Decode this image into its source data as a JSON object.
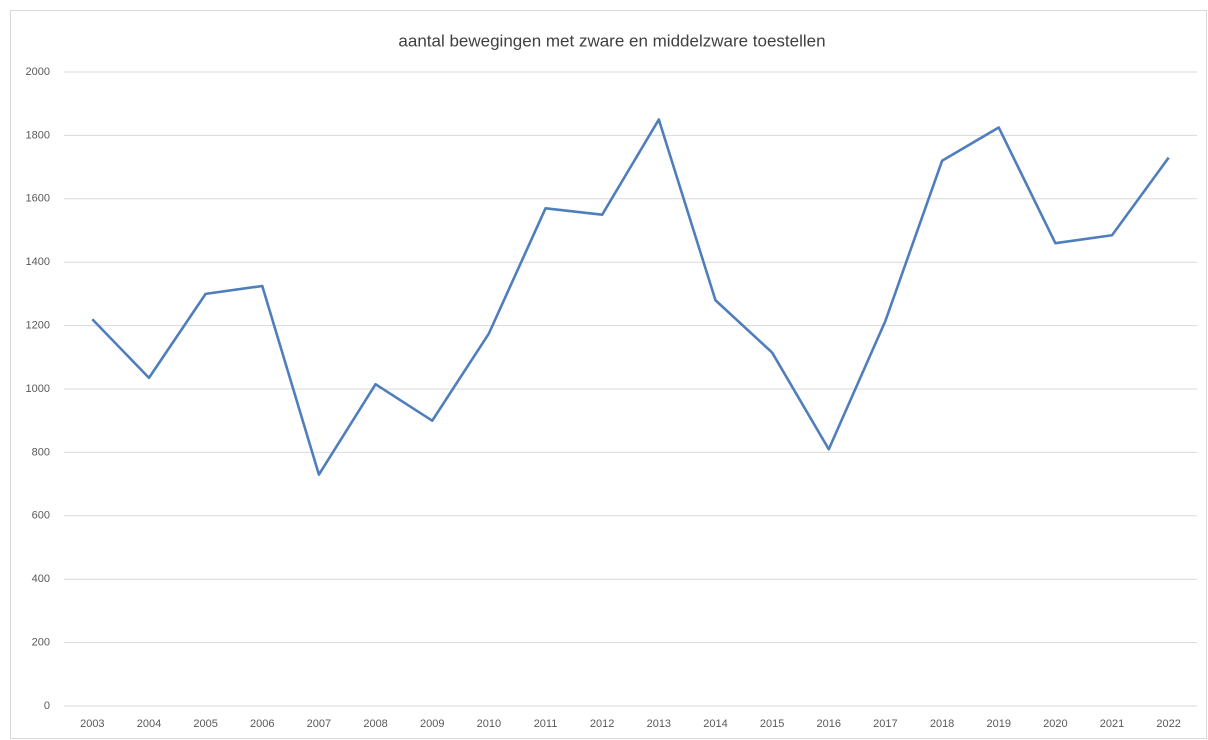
{
  "chart_data": {
    "type": "line",
    "title": "aantal bewegingen met zware en middelzware toestellen",
    "categories": [
      "2003",
      "2004",
      "2005",
      "2006",
      "2007",
      "2008",
      "2009",
      "2010",
      "2011",
      "2012",
      "2013",
      "2014",
      "2015",
      "2016",
      "2017",
      "2018",
      "2019",
      "2020",
      "2021",
      "2022"
    ],
    "values": [
      1220,
      1035,
      1300,
      1325,
      730,
      1015,
      900,
      1175,
      1570,
      1550,
      1850,
      1280,
      1115,
      810,
      1215,
      1720,
      1825,
      1460,
      1485,
      1730
    ],
    "color": "#4e7ebb",
    "ylim": [
      0,
      2000
    ],
    "yticks": [
      0,
      200,
      400,
      600,
      800,
      1000,
      1200,
      1400,
      1600,
      1800,
      2000
    ],
    "grid": true
  }
}
